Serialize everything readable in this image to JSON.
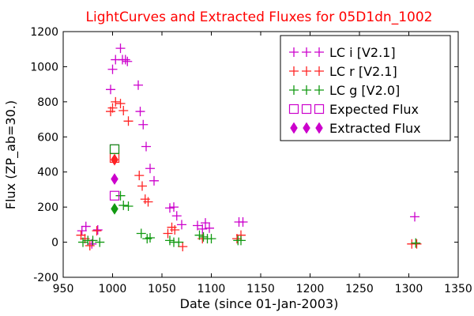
{
  "chart_data": {
    "type": "scatter",
    "title": "LightCurves and Extracted Fluxes for 05D1dn_1002",
    "title_color": "#ff0000",
    "xlabel": "Date (since 01-Jan-2003)",
    "ylabel": "Flux (ZP_ab=30.)",
    "xlim": [
      950,
      1350
    ],
    "ylim": [
      -200,
      1200
    ],
    "xticks": [
      950,
      1000,
      1050,
      1100,
      1150,
      1200,
      1250,
      1300,
      1350
    ],
    "yticks": [
      -200,
      0,
      200,
      400,
      600,
      800,
      1000,
      1200
    ],
    "grid": false,
    "legend_position": "top-right",
    "series": [
      {
        "name": "LC i [V2.1]",
        "marker": "plus",
        "color": "#cc00cc",
        "points": [
          [
            969,
            65
          ],
          [
            973,
            90
          ],
          [
            979,
            -10
          ],
          [
            985,
            70
          ],
          [
            998,
            870
          ],
          [
            1000,
            985
          ],
          [
            1003,
            1040
          ],
          [
            1008,
            1105
          ],
          [
            1010,
            1040
          ],
          [
            1013,
            1040
          ],
          [
            1015,
            1030
          ],
          [
            1026,
            895
          ],
          [
            1028,
            745
          ],
          [
            1031,
            670
          ],
          [
            1034,
            545
          ],
          [
            1038,
            420
          ],
          [
            1042,
            350
          ],
          [
            1058,
            195
          ],
          [
            1062,
            200
          ],
          [
            1065,
            150
          ],
          [
            1070,
            100
          ],
          [
            1086,
            95
          ],
          [
            1091,
            75
          ],
          [
            1094,
            110
          ],
          [
            1098,
            80
          ],
          [
            1128,
            115
          ],
          [
            1132,
            115
          ],
          [
            1306,
            145
          ]
        ]
      },
      {
        "name": "LC r [V2.1]",
        "marker": "plus",
        "color": "#ff2222",
        "points": [
          [
            968,
            40
          ],
          [
            972,
            20
          ],
          [
            977,
            -20
          ],
          [
            984,
            65
          ],
          [
            998,
            745
          ],
          [
            1000,
            765
          ],
          [
            1003,
            800
          ],
          [
            1008,
            790
          ],
          [
            1011,
            750
          ],
          [
            1016,
            690
          ],
          [
            1027,
            380
          ],
          [
            1030,
            320
          ],
          [
            1033,
            245
          ],
          [
            1036,
            230
          ],
          [
            1056,
            50
          ],
          [
            1060,
            85
          ],
          [
            1063,
            70
          ],
          [
            1071,
            -25
          ],
          [
            1091,
            20
          ],
          [
            1126,
            20
          ],
          [
            1130,
            40
          ],
          [
            1303,
            -10
          ],
          [
            1308,
            -10
          ]
        ]
      },
      {
        "name": "LC g [V2.0]",
        "marker": "plus",
        "color": "#119911",
        "points": [
          [
            970,
            0
          ],
          [
            975,
            10
          ],
          [
            980,
            10
          ],
          [
            987,
            0
          ],
          [
            1008,
            265
          ],
          [
            1011,
            210
          ],
          [
            1016,
            205
          ],
          [
            1029,
            50
          ],
          [
            1035,
            20
          ],
          [
            1038,
            25
          ],
          [
            1058,
            10
          ],
          [
            1062,
            0
          ],
          [
            1067,
            0
          ],
          [
            1088,
            40
          ],
          [
            1092,
            30
          ],
          [
            1096,
            20
          ],
          [
            1100,
            20
          ],
          [
            1127,
            10
          ],
          [
            1130,
            10
          ],
          [
            1307,
            -5
          ]
        ]
      },
      {
        "name": "Expected Flux",
        "marker": "square",
        "color": "#cc00cc",
        "points": [
          [
            1002,
            530
          ],
          [
            1002,
            265
          ]
        ]
      },
      {
        "name": "Extracted Flux",
        "marker": "diamond",
        "color": "#cc00cc",
        "points": [
          [
            1002,
            470
          ],
          [
            1002,
            360
          ]
        ]
      }
    ],
    "extra_markers": [
      {
        "marker": "square",
        "color": "#ff2222",
        "points": [
          [
            1002,
            480
          ]
        ]
      },
      {
        "marker": "square",
        "color": "#119911",
        "points": [
          [
            1002,
            530
          ]
        ]
      },
      {
        "marker": "diamond",
        "color": "#ff2222",
        "points": [
          [
            1002,
            470
          ]
        ]
      },
      {
        "marker": "diamond",
        "color": "#119911",
        "points": [
          [
            1002,
            190
          ]
        ]
      }
    ]
  }
}
